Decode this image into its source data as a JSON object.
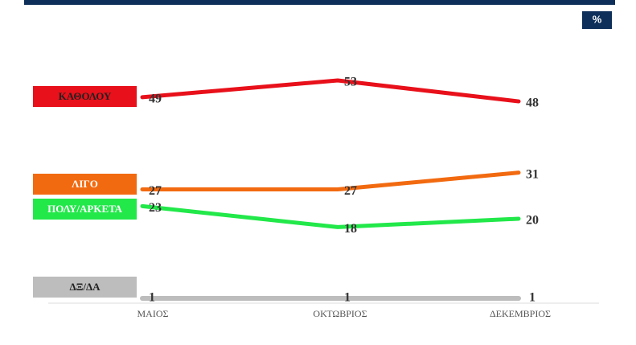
{
  "chart_data": {
    "type": "line",
    "unit": "%",
    "categories": [
      "ΜΑΙΟΣ",
      "ΟΚΤΩΒΡΙΟΣ",
      "ΔΕΚΕΜΒΡΙΟΣ"
    ],
    "series": [
      {
        "name": "ΚΑΘΟΛΟΥ",
        "color": "#e8101a",
        "values": [
          49,
          53,
          48
        ]
      },
      {
        "name": "ΛΙΓΟ",
        "color": "#f26a10",
        "values": [
          27,
          27,
          31
        ]
      },
      {
        "name": "ΠΟΛΥ/ΑΡΚΕΤΑ",
        "color": "#22e84a",
        "values": [
          23,
          18,
          20
        ]
      },
      {
        "name": "ΔΞ/ΔΑ",
        "color": "#bdbdbd",
        "values": [
          1,
          1,
          1
        ]
      }
    ]
  }
}
